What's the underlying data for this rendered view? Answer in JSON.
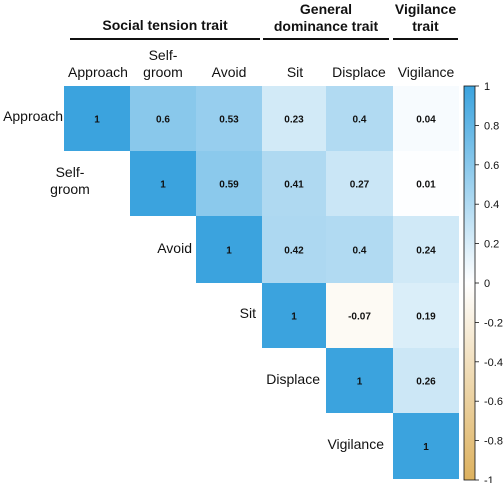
{
  "chart_data": {
    "type": "heatmap",
    "layout": "upper-triangle correlation matrix",
    "variables": [
      "Approach",
      "Self-groom",
      "Avoid",
      "Sit",
      "Displace",
      "Vigilance"
    ],
    "row_labels": [
      "Approach",
      "Self-\ngroom",
      "Avoid",
      "Sit",
      "Displace",
      "Vigilance"
    ],
    "column_labels": [
      "Approach",
      "Self-\ngroom",
      "Avoid",
      "Sit",
      "Displace",
      "Vigilance"
    ],
    "groups": [
      {
        "title": "Social tension trait",
        "columns": [
          "Approach",
          "Self-groom",
          "Avoid"
        ]
      },
      {
        "title": "General\ndominance trait",
        "columns": [
          "Sit",
          "Displace"
        ]
      },
      {
        "title": "Vigilance\ntrait",
        "columns": [
          "Vigilance"
        ]
      }
    ],
    "matrix": [
      [
        1,
        0.6,
        0.53,
        0.23,
        0.4,
        0.04
      ],
      [
        null,
        1,
        0.59,
        0.41,
        0.27,
        0.01
      ],
      [
        null,
        null,
        1,
        0.42,
        0.4,
        0.24
      ],
      [
        null,
        null,
        null,
        1,
        -0.07,
        0.19
      ],
      [
        null,
        null,
        null,
        null,
        1,
        0.26
      ],
      [
        null,
        null,
        null,
        null,
        null,
        1
      ]
    ],
    "colorbar": {
      "range": [
        -1,
        1
      ],
      "ticks": [
        "1",
        "0.8",
        "0.6",
        "0.4",
        "0.2",
        "0",
        "-0.2",
        "-0.4",
        "-0.6",
        "-0.8",
        "-1"
      ],
      "tick_values": [
        1,
        0.8,
        0.6,
        0.4,
        0.2,
        0,
        -0.2,
        -0.4,
        -0.6,
        -0.8,
        -1
      ],
      "positive_color": "#3ba3de",
      "neutral_color": "#ffffff",
      "negative_color": "#ddb15e"
    },
    "legend_position": "right"
  }
}
